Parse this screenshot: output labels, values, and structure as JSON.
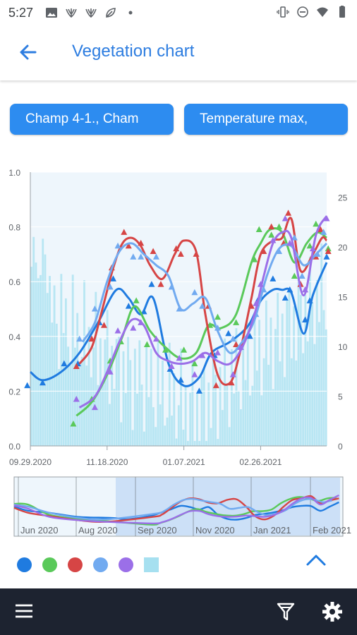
{
  "status_bar": {
    "time": "5:27"
  },
  "header": {
    "title": "Vegetation chart"
  },
  "chips": [
    {
      "label": "Champ 4-1., Cham"
    },
    {
      "label": "Temperature max,"
    }
  ],
  "chart_data": {
    "type": "line",
    "left_axis": {
      "ticks": [
        "0.0",
        "0.2",
        "0.4",
        "0.6",
        "0.8",
        "1.0"
      ],
      "ylim": [
        0,
        1
      ]
    },
    "right_axis": {
      "ticks": [
        "0",
        "5",
        "10",
        "15",
        "20",
        "25"
      ],
      "ylim": [
        0,
        27.5
      ]
    },
    "x_tick_labels": [
      "09.29.2020",
      "11.18.2020",
      "01.07.2021",
      "02.26.2021"
    ],
    "x_tick_days": [
      0,
      50,
      100,
      150
    ],
    "x_range_days": [
      0,
      193
    ],
    "colors": [
      "#1f7be0",
      "#5ac95a",
      "#d64545",
      "#71aaf0",
      "#9b6fe8",
      "#a6e0f0"
    ],
    "series": [
      {
        "color": "#1f7be0",
        "x": [
          0,
          8,
          20,
          32,
          44,
          56,
          64,
          72,
          80,
          90,
          100,
          110,
          118,
          130,
          142,
          150,
          158,
          164,
          170,
          178,
          184,
          193
        ],
        "y": [
          0.27,
          0.24,
          0.27,
          0.34,
          0.45,
          0.57,
          0.54,
          0.48,
          0.54,
          0.3,
          0.22,
          0.25,
          0.34,
          0.38,
          0.44,
          0.53,
          0.57,
          0.57,
          0.56,
          0.41,
          0.55,
          0.67
        ]
      },
      {
        "color": "#5ac95a",
        "x": [
          30,
          40,
          50,
          60,
          68,
          78,
          88,
          98,
          108,
          116,
          124,
          134,
          144,
          150,
          156,
          164,
          172,
          180,
          187,
          193
        ],
        "y": [
          0.11,
          0.16,
          0.26,
          0.4,
          0.51,
          0.42,
          0.36,
          0.32,
          0.34,
          0.44,
          0.43,
          0.48,
          0.67,
          0.74,
          0.79,
          0.78,
          0.67,
          0.74,
          0.78,
          0.76
        ]
      },
      {
        "color": "#d64545",
        "x": [
          32,
          40,
          46,
          54,
          60,
          66,
          72,
          78,
          86,
          94,
          100,
          108,
          114,
          122,
          130,
          136,
          144,
          150,
          158,
          164,
          170,
          176,
          184,
          190,
          193
        ],
        "y": [
          0.3,
          0.36,
          0.48,
          0.65,
          0.74,
          0.76,
          0.73,
          0.66,
          0.61,
          0.7,
          0.75,
          0.71,
          0.48,
          0.26,
          0.23,
          0.33,
          0.54,
          0.7,
          0.75,
          0.76,
          0.83,
          0.64,
          0.7,
          0.76,
          0.75
        ]
      },
      {
        "color": "#71aaf0",
        "x": [
          34,
          42,
          50,
          58,
          66,
          74,
          82,
          90,
          98,
          106,
          114,
          122,
          130,
          138,
          146,
          154,
          162,
          170,
          178,
          186,
          193
        ],
        "y": [
          0.38,
          0.45,
          0.6,
          0.71,
          0.74,
          0.7,
          0.66,
          0.62,
          0.5,
          0.52,
          0.54,
          0.42,
          0.34,
          0.38,
          0.46,
          0.62,
          0.72,
          0.73,
          0.66,
          0.7,
          0.74
        ]
      },
      {
        "color": "#9b6fe8",
        "x": [
          32,
          42,
          50,
          58,
          66,
          74,
          82,
          90,
          98,
          106,
          114,
          122,
          130,
          138,
          146,
          152,
          158,
          164,
          170,
          178,
          186,
          193
        ],
        "y": [
          0.14,
          0.18,
          0.27,
          0.38,
          0.46,
          0.44,
          0.34,
          0.31,
          0.3,
          0.31,
          0.34,
          0.31,
          0.3,
          0.36,
          0.48,
          0.62,
          0.74,
          0.78,
          0.76,
          0.55,
          0.77,
          0.84
        ]
      }
    ],
    "navigator": {
      "x_tick_labels": [
        "Jun 2020",
        "Aug 2020",
        "Sep 2020",
        "Nov 2020",
        "Jan 2021",
        "Feb 2021"
      ]
    }
  }
}
